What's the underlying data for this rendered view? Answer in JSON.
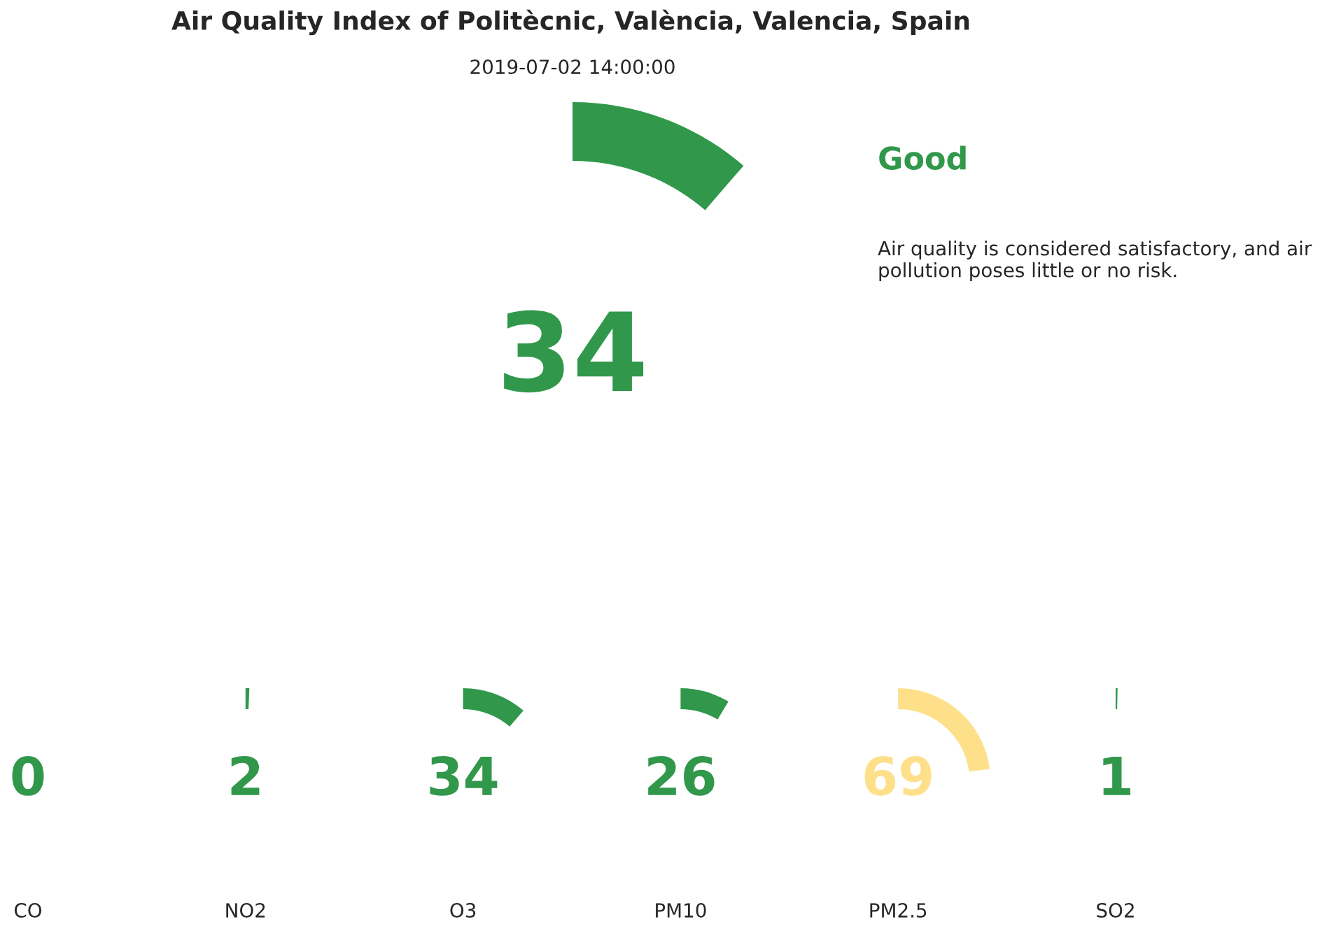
{
  "chart_data": [
    {
      "type": "other",
      "title": "Air Quality Index of Politècnic, València, Valencia, Spain",
      "subtitle": "2019-07-02 14:00:00",
      "values": [
        34
      ],
      "data_labels": true,
      "colors": [
        "#31984b"
      ],
      "annotations": [
        "Good",
        "Air quality is considered satisfactory, and air pollution poses little or no risk."
      ]
    },
    {
      "type": "other",
      "categories": [
        "CO"
      ],
      "values": [
        0
      ],
      "data_labels": true,
      "colors": [
        "#31984b"
      ]
    },
    {
      "type": "other",
      "categories": [
        "NO2"
      ],
      "values": [
        2
      ],
      "data_labels": true,
      "colors": [
        "#31984b"
      ]
    },
    {
      "type": "other",
      "categories": [
        "O3"
      ],
      "values": [
        34
      ],
      "data_labels": true,
      "colors": [
        "#31984b"
      ]
    },
    {
      "type": "other",
      "categories": [
        "PM10"
      ],
      "values": [
        26
      ],
      "data_labels": true,
      "colors": [
        "#31984b"
      ]
    },
    {
      "type": "other",
      "categories": [
        "PM2.5"
      ],
      "values": [
        69
      ],
      "data_labels": true,
      "colors": [
        "#fee08b"
      ]
    },
    {
      "type": "other",
      "categories": [
        "SO2"
      ],
      "values": [
        1
      ],
      "data_labels": true,
      "colors": [
        "#31984b"
      ]
    }
  ]
}
